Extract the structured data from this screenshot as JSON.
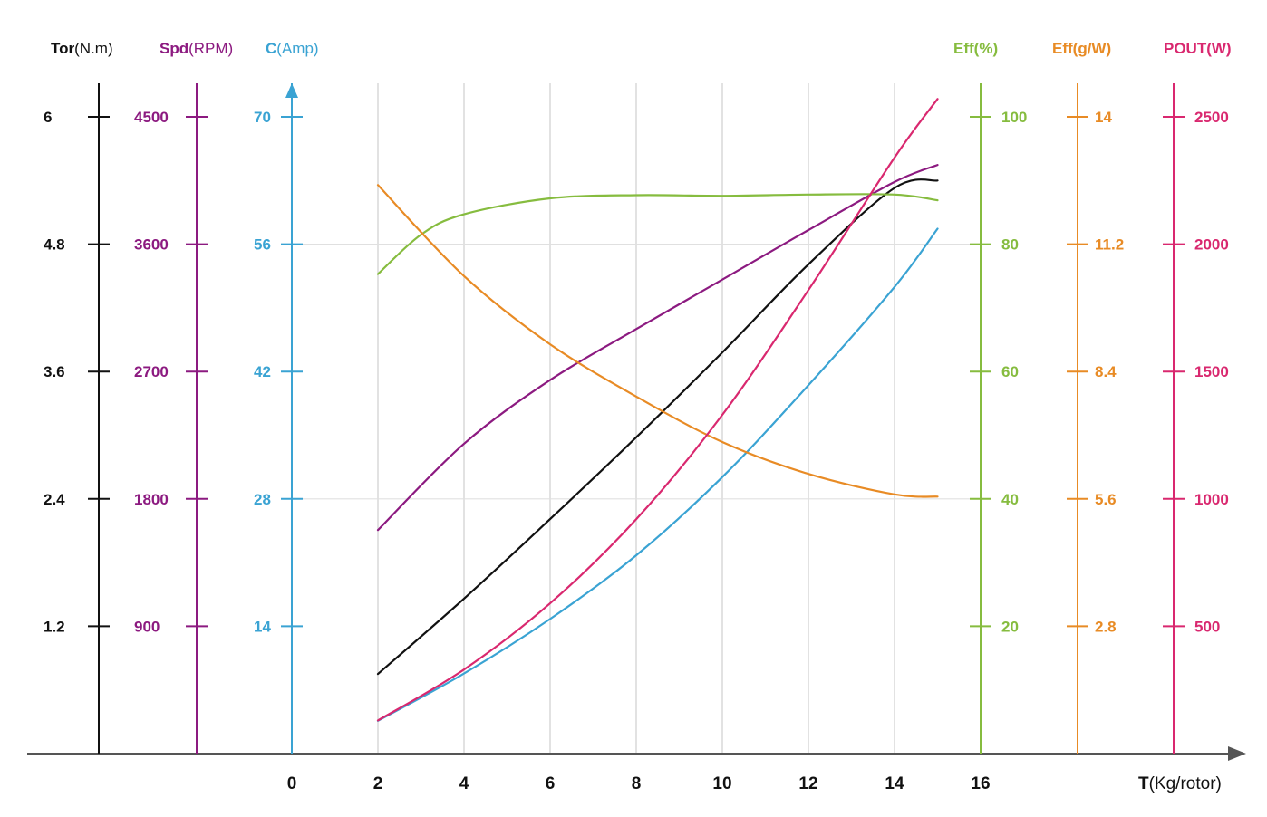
{
  "colors": {
    "torque": "#111111",
    "speed": "#8c1a80",
    "current": "#3aa3d3",
    "eff_pct": "#86bc3f",
    "eff_gw": "#e88b25",
    "pout": "#d9286f",
    "grid": "#cfcfcf",
    "axis": "#555555"
  },
  "chart_data": {
    "type": "line",
    "x_axis": {
      "label_bold": "T",
      "label_unit": "(Kg/rotor)",
      "ticks": [
        "0",
        "2",
        "4",
        "6",
        "8",
        "10",
        "12",
        "14",
        "16"
      ],
      "range": [
        0,
        16
      ]
    },
    "y_axes": [
      {
        "id": "torque",
        "label_bold": "Tor",
        "label_unit": "(N.m)",
        "ticks": [
          "1.2",
          "2.4",
          "3.6",
          "4.8",
          "6"
        ],
        "range": [
          0,
          6
        ],
        "color_key": "torque",
        "side": "left"
      },
      {
        "id": "speed",
        "label_bold": "Spd",
        "label_unit": "(RPM)",
        "ticks": [
          "900",
          "1800",
          "2700",
          "3600",
          "4500"
        ],
        "range": [
          0,
          4500
        ],
        "color_key": "speed",
        "side": "left"
      },
      {
        "id": "current",
        "label_bold": "C",
        "label_unit": "(Amp)",
        "ticks": [
          "14",
          "28",
          "42",
          "56",
          "70"
        ],
        "range": [
          0,
          70
        ],
        "color_key": "current",
        "side": "left"
      },
      {
        "id": "eff_pct",
        "label_bold": "Eff(%)",
        "label_unit": "",
        "ticks": [
          "20",
          "40",
          "60",
          "80",
          "100"
        ],
        "range": [
          0,
          100
        ],
        "color_key": "eff_pct",
        "side": "right"
      },
      {
        "id": "eff_gw",
        "label_bold": "Eff(g/W)",
        "label_unit": "",
        "ticks": [
          "2.8",
          "5.6",
          "8.4",
          "11.2",
          "14"
        ],
        "range": [
          0,
          14
        ],
        "color_key": "eff_gw",
        "side": "right"
      },
      {
        "id": "pout",
        "label_bold": "POUT(W)",
        "label_unit": "",
        "ticks": [
          "500",
          "1000",
          "1500",
          "2000",
          "2500"
        ],
        "range": [
          0,
          2500
        ],
        "color_key": "pout",
        "side": "right"
      }
    ],
    "grid": true,
    "series": [
      {
        "axis": "torque",
        "x": [
          2,
          4,
          6,
          8,
          10,
          12,
          14,
          15
        ],
        "y": [
          0.75,
          1.46,
          2.21,
          2.98,
          3.78,
          4.61,
          5.33,
          5.4
        ]
      },
      {
        "axis": "speed",
        "x": [
          2,
          4,
          6,
          8,
          10,
          12,
          14,
          15
        ],
        "y": [
          1580,
          2190,
          2640,
          3000,
          3350,
          3700,
          4040,
          4160
        ]
      },
      {
        "axis": "current",
        "x": [
          2,
          4,
          6,
          8,
          10,
          12,
          14,
          15
        ],
        "y": [
          3.6,
          8.8,
          14.8,
          21.8,
          30.4,
          40.5,
          51.3,
          57.7
        ]
      },
      {
        "axis": "eff_pct",
        "x": [
          2,
          3,
          4,
          6,
          8,
          10,
          12,
          14,
          15
        ],
        "y": [
          75.3,
          81.5,
          84.7,
          87.2,
          87.7,
          87.6,
          87.8,
          87.8,
          86.9
        ]
      },
      {
        "axis": "eff_gw",
        "x": [
          2,
          4,
          6,
          8,
          10,
          12,
          14,
          15
        ],
        "y": [
          12.5,
          10.5,
          9.0,
          7.85,
          6.85,
          6.15,
          5.7,
          5.65
        ]
      },
      {
        "axis": "pout",
        "x": [
          2,
          4,
          6,
          8,
          10,
          12,
          14,
          15
        ],
        "y": [
          130,
          330,
          590,
          920,
          1330,
          1820,
          2340,
          2570
        ]
      }
    ]
  }
}
